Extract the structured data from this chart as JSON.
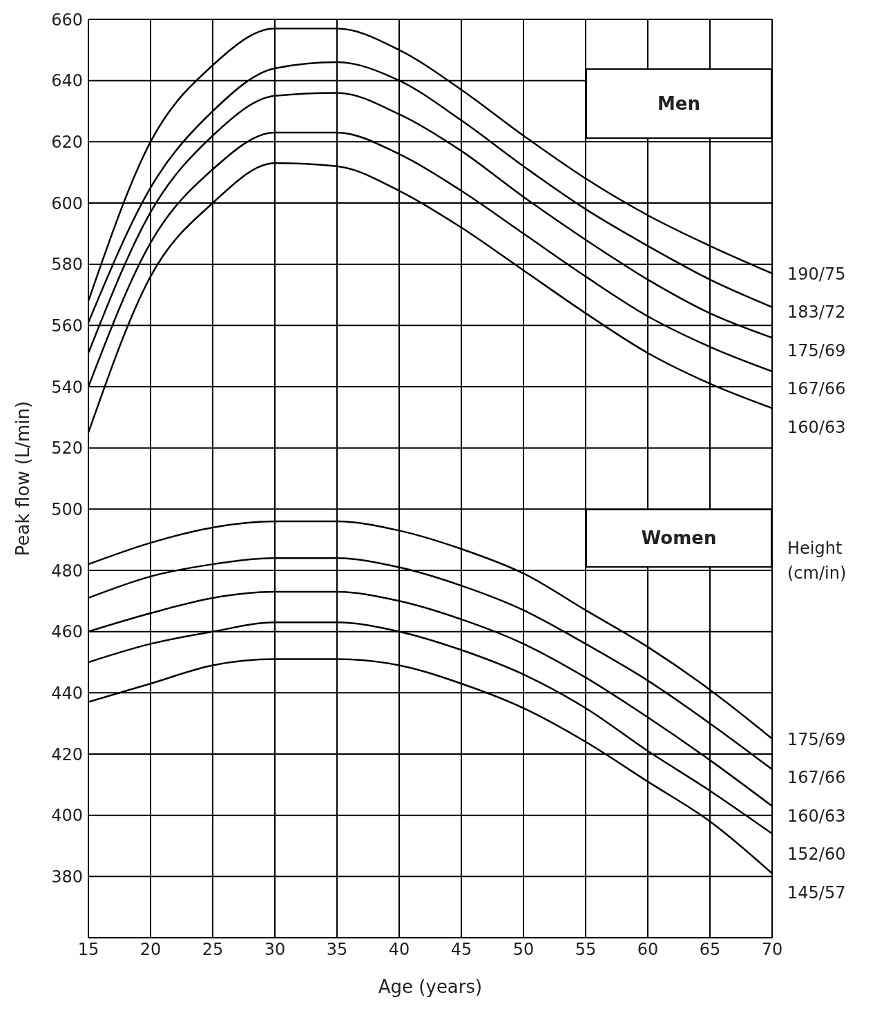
{
  "chart_data": {
    "type": "line",
    "xlabel": "Age (years)",
    "ylabel": "Peak flow (L/min)",
    "legend_title": "Height (cm/in)",
    "annotations": [
      "Men",
      "Women"
    ],
    "x": [
      15,
      20,
      25,
      30,
      35,
      40,
      45,
      50,
      55,
      60,
      65,
      70
    ],
    "xlim": [
      15,
      70
    ],
    "xticks": [
      15,
      20,
      25,
      30,
      35,
      40,
      45,
      50,
      55,
      60,
      65,
      70
    ],
    "ylim": [
      360,
      660
    ],
    "yticks": [
      380,
      400,
      420,
      440,
      460,
      480,
      500,
      520,
      540,
      560,
      580,
      600,
      620,
      640,
      660
    ],
    "grid": true,
    "marker": "none",
    "line_style": "solid",
    "legend": "right",
    "series": [
      {
        "name": "190/75",
        "color": "#000000",
        "values": [
          568,
          620,
          645,
          657,
          657,
          650,
          637,
          622,
          608,
          596,
          586,
          577
        ]
      },
      {
        "name": "183/72",
        "color": "#000000",
        "values": [
          561,
          605,
          630,
          644,
          646,
          640,
          627,
          612,
          598,
          586,
          575,
          566
        ]
      },
      {
        "name": "175/69",
        "color": "#000000",
        "values": [
          551,
          597,
          622,
          635,
          636,
          629,
          617,
          602,
          588,
          575,
          564,
          556
        ]
      },
      {
        "name": "167/66",
        "color": "#000000",
        "values": [
          540,
          587,
          611,
          623,
          623,
          616,
          604,
          590,
          576,
          563,
          553,
          545
        ]
      },
      {
        "name": "160/63",
        "color": "#000000",
        "values": [
          525,
          576,
          600,
          613,
          612,
          604,
          592,
          578,
          564,
          551,
          541,
          533
        ]
      },
      {
        "name": "175/69",
        "color": "#000000",
        "values": [
          482,
          489,
          494,
          496,
          496,
          493,
          487,
          479,
          467,
          455,
          441,
          425
        ]
      },
      {
        "name": "167/66",
        "color": "#000000",
        "values": [
          471,
          478,
          482,
          484,
          484,
          481,
          475,
          467,
          456,
          444,
          430,
          415
        ]
      },
      {
        "name": "160/63",
        "color": "#000000",
        "values": [
          460,
          466,
          471,
          473,
          473,
          470,
          464,
          456,
          445,
          432,
          418,
          403
        ]
      },
      {
        "name": "152/60",
        "color": "#000000",
        "values": [
          450,
          456,
          460,
          463,
          463,
          460,
          454,
          446,
          435,
          421,
          408,
          394
        ]
      },
      {
        "name": "145/57",
        "color": "#000000",
        "values": [
          437,
          443,
          449,
          451,
          451,
          449,
          443,
          435,
          424,
          411,
          398,
          381
        ]
      }
    ]
  }
}
